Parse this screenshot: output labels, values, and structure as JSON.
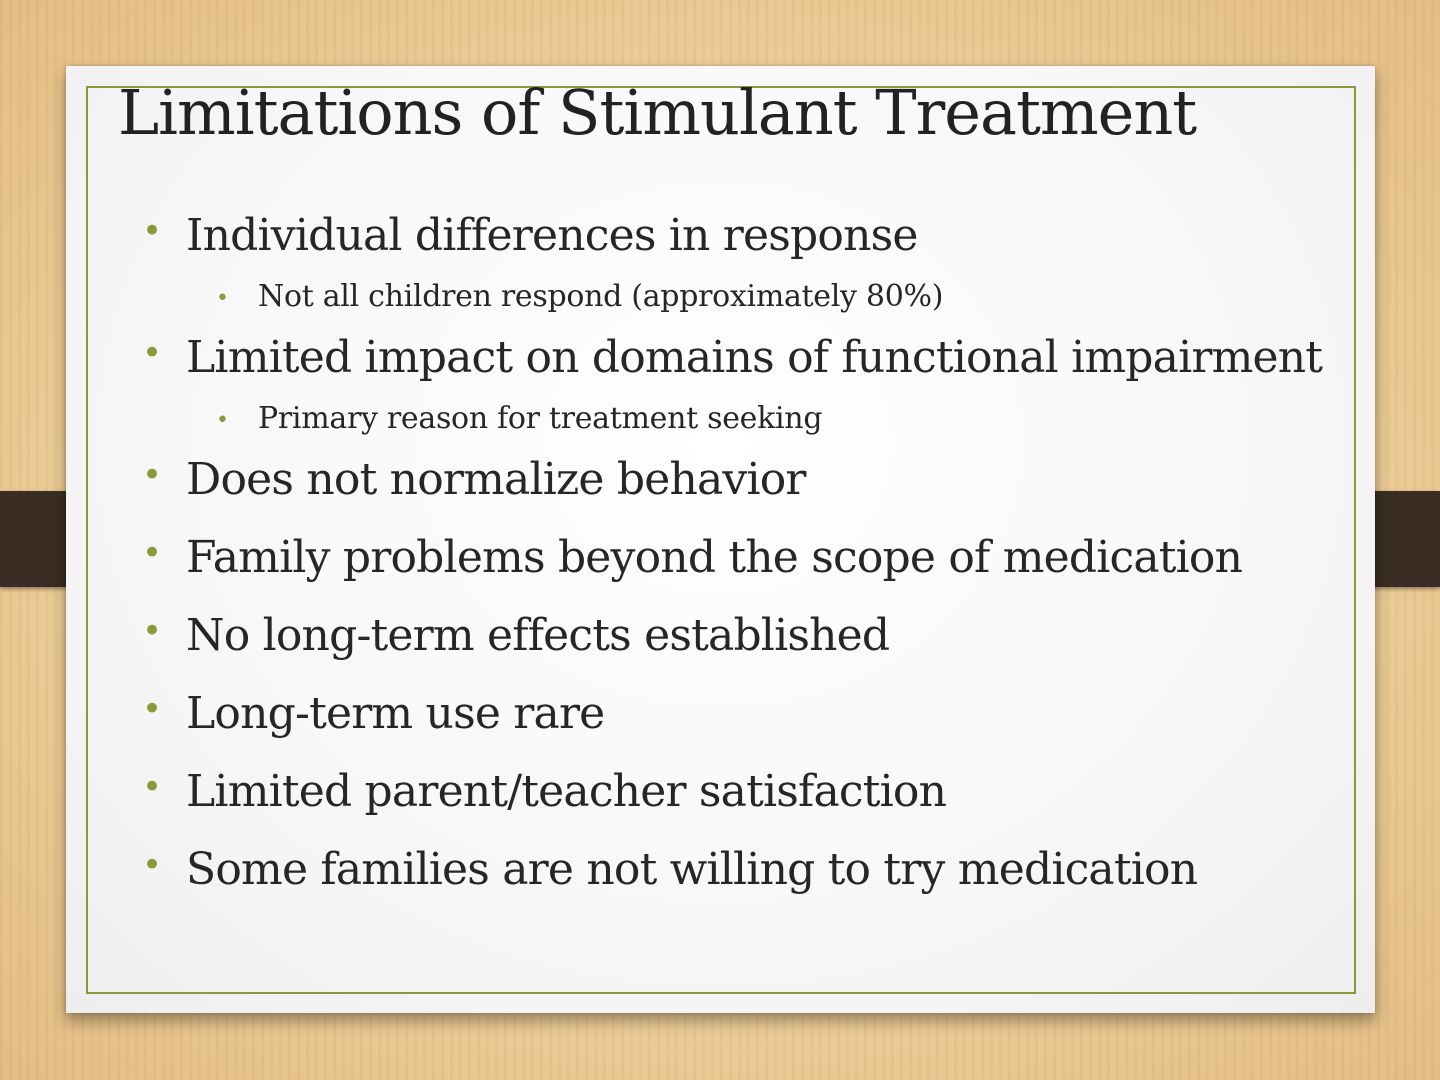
{
  "slide": {
    "title": "Limitations of Stimulant Treatment",
    "bullets": [
      {
        "text": "Individual differences in response",
        "sub": [
          "Not all children respond (approximately 80%)"
        ]
      },
      {
        "text": "Limited impact on domains of functional impairment",
        "sub": [
          "Primary reason for treatment seeking"
        ]
      },
      {
        "text": "Does not normalize behavior",
        "sub": []
      },
      {
        "text": "Family problems beyond the scope of medication",
        "sub": []
      },
      {
        "text": "No long-term effects established",
        "sub": []
      },
      {
        "text": "Long-term use rare",
        "sub": []
      },
      {
        "text": "Limited parent/teacher satisfaction",
        "sub": []
      },
      {
        "text": "Some families are not willing to try medication",
        "sub": []
      }
    ],
    "colors": {
      "accent": "#8a9a3a",
      "strap": "#3a2e24",
      "text": "#262626"
    }
  }
}
